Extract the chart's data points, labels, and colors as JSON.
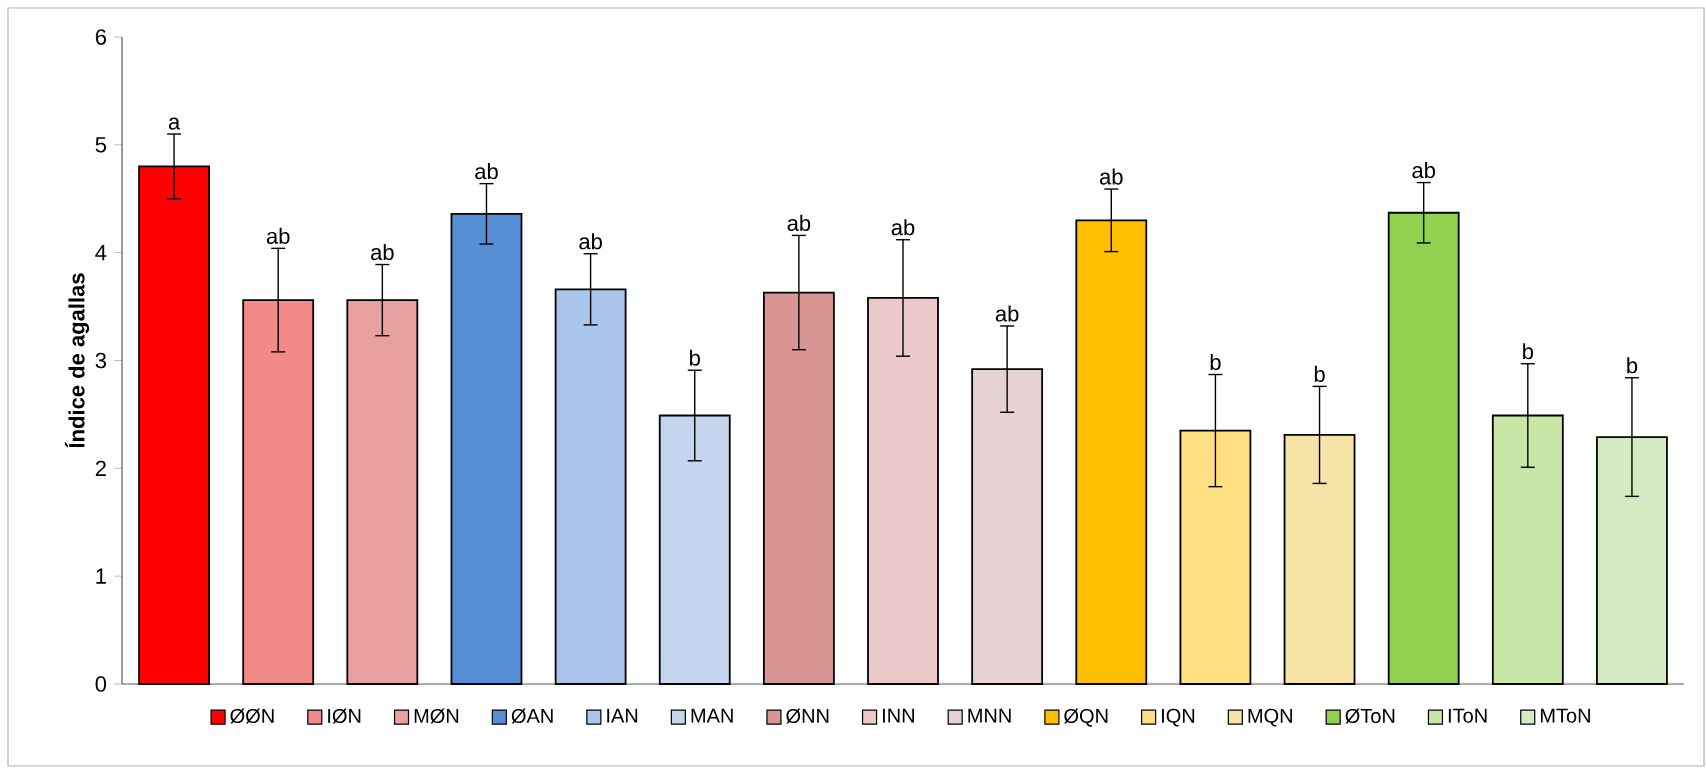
{
  "chart_data": {
    "type": "bar",
    "ylabel": "Índice de agallas",
    "categories": [
      null,
      null,
      null,
      null,
      null,
      null,
      null,
      null,
      null,
      null,
      null,
      null,
      null,
      null,
      null
    ],
    "ylim": [
      0,
      6
    ],
    "yticks": [
      0,
      1,
      2,
      3,
      4,
      5,
      6
    ],
    "legend": "bottom",
    "grid": false,
    "series": [
      {
        "name": "ØØN",
        "color": "#ff0000",
        "values": [
          4.8,
          null,
          null,
          null,
          null,
          null,
          null,
          null,
          null,
          null,
          null,
          null,
          null,
          null,
          null
        ],
        "errors": [
          0.3,
          null,
          null,
          null,
          null,
          null,
          null,
          null,
          null,
          null,
          null,
          null,
          null,
          null,
          null
        ],
        "value_labels": [
          "a",
          null,
          null,
          null,
          null,
          null,
          null,
          null,
          null,
          null,
          null,
          null,
          null,
          null,
          null
        ]
      },
      {
        "name": "IØN",
        "color": "#f28a8a",
        "values": [
          null,
          3.56,
          null,
          null,
          null,
          null,
          null,
          null,
          null,
          null,
          null,
          null,
          null,
          null,
          null
        ],
        "errors": [
          null,
          0.48,
          null,
          null,
          null,
          null,
          null,
          null,
          null,
          null,
          null,
          null,
          null,
          null,
          null
        ],
        "value_labels": [
          null,
          "ab",
          null,
          null,
          null,
          null,
          null,
          null,
          null,
          null,
          null,
          null,
          null,
          null,
          null
        ]
      },
      {
        "name": "MØN",
        "color": "#e8a0a0",
        "values": [
          null,
          null,
          3.56,
          null,
          null,
          null,
          null,
          null,
          null,
          null,
          null,
          null,
          null,
          null,
          null
        ],
        "errors": [
          null,
          null,
          0.33,
          null,
          null,
          null,
          null,
          null,
          null,
          null,
          null,
          null,
          null,
          null,
          null
        ],
        "value_labels": [
          null,
          null,
          "ab",
          null,
          null,
          null,
          null,
          null,
          null,
          null,
          null,
          null,
          null,
          null,
          null
        ]
      },
      {
        "name": "ØAN",
        "color": "#558ed5",
        "values": [
          null,
          null,
          null,
          4.36,
          null,
          null,
          null,
          null,
          null,
          null,
          null,
          null,
          null,
          null,
          null
        ],
        "errors": [
          null,
          null,
          null,
          0.28,
          null,
          null,
          null,
          null,
          null,
          null,
          null,
          null,
          null,
          null,
          null
        ],
        "value_labels": [
          null,
          null,
          null,
          "ab",
          null,
          null,
          null,
          null,
          null,
          null,
          null,
          null,
          null,
          null,
          null
        ]
      },
      {
        "name": "IAN",
        "color": "#a9c6ea",
        "values": [
          null,
          null,
          null,
          null,
          3.66,
          null,
          null,
          null,
          null,
          null,
          null,
          null,
          null,
          null,
          null
        ],
        "errors": [
          null,
          null,
          null,
          null,
          0.33,
          null,
          null,
          null,
          null,
          null,
          null,
          null,
          null,
          null,
          null
        ],
        "value_labels": [
          null,
          null,
          null,
          null,
          "ab",
          null,
          null,
          null,
          null,
          null,
          null,
          null,
          null,
          null,
          null
        ]
      },
      {
        "name": "MAN",
        "color": "#c3d6ee",
        "values": [
          null,
          null,
          null,
          null,
          null,
          2.49,
          null,
          null,
          null,
          null,
          null,
          null,
          null,
          null,
          null
        ],
        "errors": [
          null,
          null,
          null,
          null,
          null,
          0.42,
          null,
          null,
          null,
          null,
          null,
          null,
          null,
          null,
          null
        ],
        "value_labels": [
          null,
          null,
          null,
          null,
          null,
          "b",
          null,
          null,
          null,
          null,
          null,
          null,
          null,
          null,
          null
        ]
      },
      {
        "name": "ØNN",
        "color": "#d99594",
        "values": [
          null,
          null,
          null,
          null,
          null,
          null,
          3.63,
          null,
          null,
          null,
          null,
          null,
          null,
          null,
          null
        ],
        "errors": [
          null,
          null,
          null,
          null,
          null,
          null,
          0.53,
          null,
          null,
          null,
          null,
          null,
          null,
          null,
          null
        ],
        "value_labels": [
          null,
          null,
          null,
          null,
          null,
          null,
          "ab",
          null,
          null,
          null,
          null,
          null,
          null,
          null,
          null
        ]
      },
      {
        "name": "INN",
        "color": "#ecc9c9",
        "values": [
          null,
          null,
          null,
          null,
          null,
          null,
          null,
          3.58,
          null,
          null,
          null,
          null,
          null,
          null,
          null
        ],
        "errors": [
          null,
          null,
          null,
          null,
          null,
          null,
          null,
          0.54,
          null,
          null,
          null,
          null,
          null,
          null,
          null
        ],
        "value_labels": [
          null,
          null,
          null,
          null,
          null,
          null,
          null,
          "ab",
          null,
          null,
          null,
          null,
          null,
          null,
          null
        ]
      },
      {
        "name": "MNN",
        "color": "#e6d2d2",
        "values": [
          null,
          null,
          null,
          null,
          null,
          null,
          null,
          null,
          2.92,
          null,
          null,
          null,
          null,
          null,
          null
        ],
        "errors": [
          null,
          null,
          null,
          null,
          null,
          null,
          null,
          null,
          0.4,
          null,
          null,
          null,
          null,
          null,
          null
        ],
        "value_labels": [
          null,
          null,
          null,
          null,
          null,
          null,
          null,
          null,
          "ab",
          null,
          null,
          null,
          null,
          null,
          null
        ]
      },
      {
        "name": "ØQN",
        "color": "#ffc000",
        "values": [
          null,
          null,
          null,
          null,
          null,
          null,
          null,
          null,
          null,
          4.3,
          null,
          null,
          null,
          null,
          null
        ],
        "errors": [
          null,
          null,
          null,
          null,
          null,
          null,
          null,
          null,
          null,
          0.29,
          null,
          null,
          null,
          null,
          null
        ],
        "value_labels": [
          null,
          null,
          null,
          null,
          null,
          null,
          null,
          null,
          null,
          "ab",
          null,
          null,
          null,
          null,
          null
        ]
      },
      {
        "name": "IQN",
        "color": "#ffdf80",
        "values": [
          null,
          null,
          null,
          null,
          null,
          null,
          null,
          null,
          null,
          null,
          2.35,
          null,
          null,
          null,
          null
        ],
        "errors": [
          null,
          null,
          null,
          null,
          null,
          null,
          null,
          null,
          null,
          null,
          0.52,
          null,
          null,
          null,
          null
        ],
        "value_labels": [
          null,
          null,
          null,
          null,
          null,
          null,
          null,
          null,
          null,
          null,
          "b",
          null,
          null,
          null,
          null
        ]
      },
      {
        "name": "MQN",
        "color": "#f5e3a8",
        "values": [
          null,
          null,
          null,
          null,
          null,
          null,
          null,
          null,
          null,
          null,
          null,
          2.31,
          null,
          null,
          null
        ],
        "errors": [
          null,
          null,
          null,
          null,
          null,
          null,
          null,
          null,
          null,
          null,
          null,
          0.45,
          null,
          null,
          null
        ],
        "value_labels": [
          null,
          null,
          null,
          null,
          null,
          null,
          null,
          null,
          null,
          null,
          null,
          "b",
          null,
          null,
          null
        ]
      },
      {
        "name": "ØToN",
        "color": "#92d050",
        "values": [
          null,
          null,
          null,
          null,
          null,
          null,
          null,
          null,
          null,
          null,
          null,
          null,
          4.37,
          null,
          null
        ],
        "errors": [
          null,
          null,
          null,
          null,
          null,
          null,
          null,
          null,
          null,
          null,
          null,
          null,
          0.28,
          null,
          null
        ],
        "value_labels": [
          null,
          null,
          null,
          null,
          null,
          null,
          null,
          null,
          null,
          null,
          null,
          null,
          "ab",
          null,
          null
        ]
      },
      {
        "name": "IToN",
        "color": "#c8e7a7",
        "values": [
          null,
          null,
          null,
          null,
          null,
          null,
          null,
          null,
          null,
          null,
          null,
          null,
          null,
          2.49,
          null
        ],
        "errors": [
          null,
          null,
          null,
          null,
          null,
          null,
          null,
          null,
          null,
          null,
          null,
          null,
          null,
          0.48,
          null
        ],
        "value_labels": [
          null,
          null,
          null,
          null,
          null,
          null,
          null,
          null,
          null,
          null,
          null,
          null,
          null,
          "b",
          null
        ]
      },
      {
        "name": "MToN",
        "color": "#d3ebc0",
        "values": [
          null,
          null,
          null,
          null,
          null,
          null,
          null,
          null,
          null,
          null,
          null,
          null,
          null,
          null,
          2.29
        ],
        "errors": [
          null,
          null,
          null,
          null,
          null,
          null,
          null,
          null,
          null,
          null,
          null,
          null,
          null,
          null,
          0.55
        ],
        "value_labels": [
          null,
          null,
          null,
          null,
          null,
          null,
          null,
          null,
          null,
          null,
          null,
          null,
          null,
          null,
          "b"
        ]
      }
    ]
  }
}
